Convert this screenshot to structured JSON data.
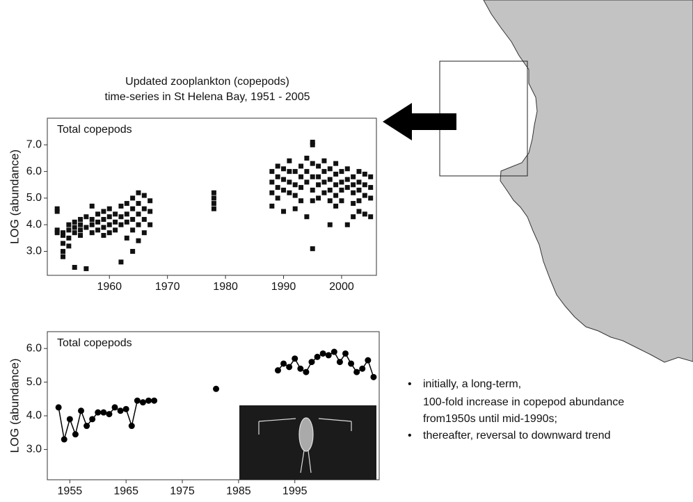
{
  "header": [
    "Updated zooplankton (copepods)",
    "time-series in St Helena Bay, 1951 - 2005"
  ],
  "notes": [
    [
      "initially, a long-term,",
      "100-fold increase in copepod abundance",
      "from1950s until mid-1990s;"
    ],
    [
      "thereafter, reversal to downward trend"
    ]
  ],
  "chart_data": [
    {
      "type": "scatter",
      "title": "Total copepods",
      "ylabel": "LOG (abundance)",
      "xlim": [
        1949.3,
        2006
      ],
      "ylim": [
        2.1,
        8.0
      ],
      "xticks": [
        1960,
        1970,
        1980,
        1990,
        2000
      ],
      "yticks": [
        {
          "value": 3,
          "label": "3.0"
        },
        {
          "value": 4,
          "label": "4.0"
        },
        {
          "value": 5,
          "label": "5.0"
        },
        {
          "value": 6,
          "label": "6.0"
        },
        {
          "value": 7,
          "label": "7.0"
        }
      ],
      "series": [
        {
          "type": "scatter",
          "color": "#111111",
          "x": [
            1951,
            1951,
            1951,
            1951,
            1952,
            1952,
            1952,
            1952,
            1952,
            1953,
            1953,
            1953,
            1953,
            1954,
            1954,
            1954,
            1954,
            1955,
            1955,
            1955,
            1955,
            1956,
            1956,
            1956,
            1957,
            1957,
            1957,
            1957,
            1958,
            1958,
            1958,
            1959,
            1959,
            1959,
            1959,
            1960,
            1960,
            1960,
            1960,
            1961,
            1961,
            1961,
            1962,
            1962,
            1962,
            1962,
            1963,
            1963,
            1963,
            1963,
            1964,
            1964,
            1964,
            1964,
            1964,
            1965,
            1965,
            1965,
            1965,
            1965,
            1966,
            1966,
            1966,
            1966,
            1967,
            1967,
            1967,
            1978,
            1978,
            1978,
            1978,
            1988,
            1988,
            1988,
            1988,
            1989,
            1989,
            1989,
            1989,
            1990,
            1990,
            1990,
            1990,
            1991,
            1991,
            1991,
            1991,
            1992,
            1992,
            1992,
            1992,
            1993,
            1993,
            1993,
            1993,
            1994,
            1994,
            1994,
            1994,
            1995,
            1995,
            1995,
            1995,
            1995,
            1995,
            1995,
            1996,
            1996,
            1996,
            1996,
            1997,
            1997,
            1997,
            1997,
            1998,
            1998,
            1998,
            1998,
            1998,
            1999,
            1999,
            1999,
            1999,
            1999,
            2000,
            2000,
            2000,
            2000,
            2001,
            2001,
            2001,
            2001,
            2002,
            2002,
            2002,
            2002,
            2002,
            2003,
            2003,
            2003,
            2003,
            2003,
            2004,
            2004,
            2004,
            2004,
            2005,
            2005,
            2005,
            2005
          ],
          "values": [
            4.6,
            4.5,
            3.8,
            3.7,
            3.7,
            3.6,
            3.3,
            3.0,
            2.8,
            3.8,
            4.0,
            3.2,
            3.5,
            4.1,
            3.9,
            3.7,
            2.4,
            4.2,
            4.0,
            3.8,
            3.6,
            4.3,
            3.9,
            2.35,
            4.7,
            4.2,
            4.0,
            3.7,
            4.4,
            4.1,
            3.8,
            4.5,
            4.2,
            3.9,
            3.6,
            4.6,
            4.3,
            4.0,
            3.7,
            4.4,
            4.1,
            3.8,
            4.7,
            4.3,
            4.0,
            2.6,
            4.8,
            4.4,
            4.1,
            3.5,
            5.0,
            4.6,
            4.2,
            3.8,
            3.0,
            5.2,
            4.8,
            4.4,
            4.0,
            3.4,
            5.1,
            4.6,
            4.2,
            3.7,
            4.9,
            4.5,
            4.0,
            5.2,
            5.0,
            4.8,
            4.6,
            6.0,
            5.6,
            5.2,
            4.7,
            6.2,
            5.8,
            5.4,
            5.0,
            6.1,
            5.7,
            5.3,
            4.5,
            6.4,
            6.0,
            5.6,
            5.2,
            6.0,
            5.5,
            5.1,
            4.6,
            6.2,
            5.8,
            5.4,
            4.9,
            6.5,
            6.0,
            5.6,
            4.3,
            7.1,
            7.0,
            6.3,
            5.8,
            5.3,
            4.9,
            3.1,
            6.2,
            5.8,
            5.5,
            5.0,
            6.4,
            6.0,
            5.6,
            5.2,
            6.1,
            5.7,
            5.3,
            4.9,
            4.0,
            6.3,
            5.9,
            5.5,
            5.1,
            4.7,
            6.0,
            5.6,
            5.3,
            4.9,
            6.1,
            5.7,
            5.4,
            4.0,
            5.8,
            5.5,
            5.2,
            4.8,
            4.3,
            6.0,
            5.6,
            5.3,
            4.9,
            4.5,
            5.9,
            5.5,
            5.1,
            4.4,
            5.8,
            5.4,
            5.0,
            4.3
          ]
        },
        {
          "type": "line",
          "color": "#000000",
          "x": [
            1951,
            1995
          ],
          "values": [
            3.7,
            6.3
          ]
        },
        {
          "type": "line",
          "color": "#999999",
          "x": [
            1995,
            2005
          ],
          "values": [
            6.3,
            5.0
          ]
        }
      ]
    },
    {
      "type": "line",
      "title": "Total copepods",
      "ylabel": "LOG (abundance)",
      "xlim": [
        1951,
        2010
      ],
      "ylim": [
        2.1,
        6.5
      ],
      "xticks": [
        1955,
        1965,
        1975,
        1985,
        1995
      ],
      "yticks": [
        {
          "value": 3,
          "label": "3.0"
        },
        {
          "value": 4,
          "label": "4.0"
        },
        {
          "value": 5,
          "label": "5.0"
        },
        {
          "value": 6,
          "label": "6.0"
        }
      ],
      "series": [
        {
          "type": "line",
          "color": "#000000",
          "x": [
            1953,
            1954,
            1955,
            1956,
            1957,
            1958,
            1959,
            1960,
            1961,
            1962,
            1963,
            1964,
            1965,
            1966,
            1967,
            1968,
            1969,
            1970,
            1981,
            1992,
            1993,
            1994,
            1995,
            1996,
            1997,
            1998,
            1999,
            2000,
            2001,
            2002,
            2003,
            2004,
            2005,
            2006,
            2007,
            2008,
            2009
          ],
          "values": [
            4.25,
            3.3,
            3.9,
            3.45,
            4.15,
            3.7,
            3.9,
            4.1,
            4.1,
            4.05,
            4.25,
            4.15,
            4.2,
            3.7,
            4.45,
            4.4,
            4.45,
            4.45,
            4.8,
            5.35,
            5.55,
            5.45,
            5.7,
            5.4,
            5.3,
            5.6,
            5.75,
            5.85,
            5.8,
            5.9,
            5.6,
            5.85,
            5.55,
            5.3,
            5.4,
            5.65,
            5.15
          ]
        }
      ]
    }
  ]
}
